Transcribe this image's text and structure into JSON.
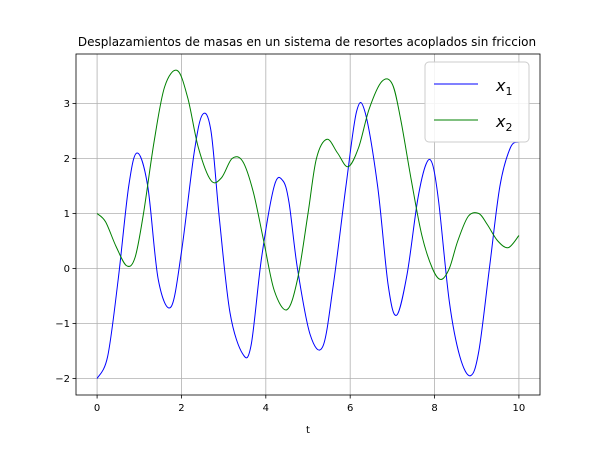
{
  "chart_data": {
    "type": "line",
    "title": "Desplazamientos de masas en un sistema de resortes acoplados sin friccion",
    "xlabel": "t",
    "ylabel": "",
    "xlim": [
      -0.5,
      10.5
    ],
    "ylim": [
      -2.3,
      3.9
    ],
    "xticks": [
      0,
      2,
      4,
      6,
      8,
      10
    ],
    "yticks": [
      -2,
      -1,
      0,
      1,
      2,
      3
    ],
    "xtick_labels": [
      "0",
      "2",
      "4",
      "6",
      "8",
      "10"
    ],
    "ytick_labels": [
      "−2",
      "−1",
      "0",
      "1",
      "2",
      "3"
    ],
    "grid": true,
    "legend_position": "upper right",
    "series": [
      {
        "name": "x",
        "name_subscript": "1",
        "color": "#0000ff",
        "x": [
          0,
          0.25,
          0.5,
          0.75,
          0.95,
          1.2,
          1.45,
          1.75,
          2.0,
          2.3,
          2.5,
          2.7,
          2.9,
          3.15,
          3.45,
          3.65,
          3.9,
          4.2,
          4.4,
          4.55,
          4.75,
          5.05,
          5.35,
          5.6,
          5.9,
          6.15,
          6.35,
          6.65,
          6.9,
          7.1,
          7.35,
          7.6,
          7.8,
          7.95,
          8.1,
          8.35,
          8.6,
          8.85,
          9.05,
          9.3,
          9.55,
          9.8,
          10.0
        ],
        "y": [
          -2.0,
          -1.6,
          -0.2,
          1.5,
          2.1,
          1.5,
          -0.2,
          -0.7,
          0.3,
          2.1,
          2.8,
          2.5,
          0.9,
          -0.8,
          -1.55,
          -1.4,
          0.2,
          1.5,
          1.6,
          1.2,
          0.0,
          -1.2,
          -1.42,
          -0.3,
          1.5,
          2.85,
          2.85,
          1.5,
          -0.3,
          -0.85,
          -0.1,
          1.25,
          1.9,
          1.9,
          1.2,
          -0.6,
          -1.6,
          -1.95,
          -1.5,
          0.0,
          1.5,
          2.2,
          2.3
        ]
      },
      {
        "name": "x",
        "name_subscript": "2",
        "color": "#008000",
        "x": [
          0,
          0.2,
          0.45,
          0.7,
          0.9,
          1.1,
          1.35,
          1.6,
          1.9,
          2.15,
          2.4,
          2.7,
          2.95,
          3.2,
          3.45,
          3.7,
          3.95,
          4.2,
          4.5,
          4.75,
          5.0,
          5.2,
          5.45,
          5.7,
          5.95,
          6.2,
          6.45,
          6.75,
          7.0,
          7.2,
          7.45,
          7.7,
          7.95,
          8.15,
          8.35,
          8.55,
          8.8,
          9.05,
          9.25,
          9.5,
          9.75,
          10.0
        ],
        "y": [
          1.0,
          0.85,
          0.4,
          0.05,
          0.2,
          1.0,
          2.3,
          3.3,
          3.6,
          3.1,
          2.2,
          1.6,
          1.65,
          2.0,
          1.95,
          1.4,
          0.5,
          -0.4,
          -0.75,
          -0.2,
          1.0,
          2.0,
          2.35,
          2.1,
          1.85,
          2.2,
          2.9,
          3.4,
          3.35,
          2.7,
          1.6,
          0.6,
          0.0,
          -0.2,
          0.0,
          0.5,
          0.95,
          1.0,
          0.8,
          0.5,
          0.38,
          0.6
        ]
      }
    ]
  }
}
